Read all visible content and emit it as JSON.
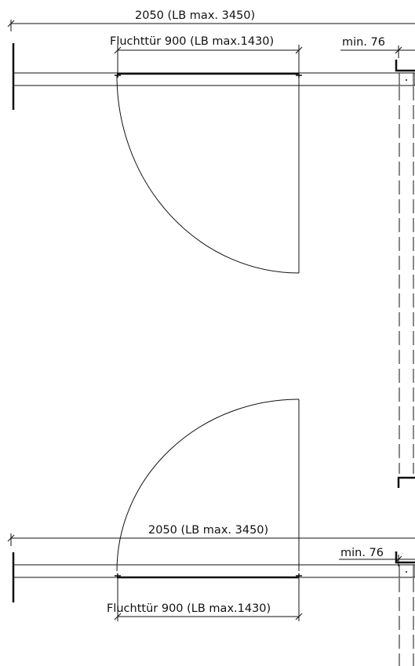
{
  "top_plan": {
    "overall_dimension": "2050 (LB max. 3450)",
    "door_dimension": "Fluchttür 900 (LB max.1430)",
    "frame_dimension": "min. 76"
  },
  "bottom_plan": {
    "overall_dimension": "2050 (LB max. 3450)",
    "door_dimension": "Fluchttür 900 (LB max.1430)",
    "frame_dimension": "min. 76"
  },
  "colors": {
    "line": "#111111",
    "background": "#ffffff"
  }
}
